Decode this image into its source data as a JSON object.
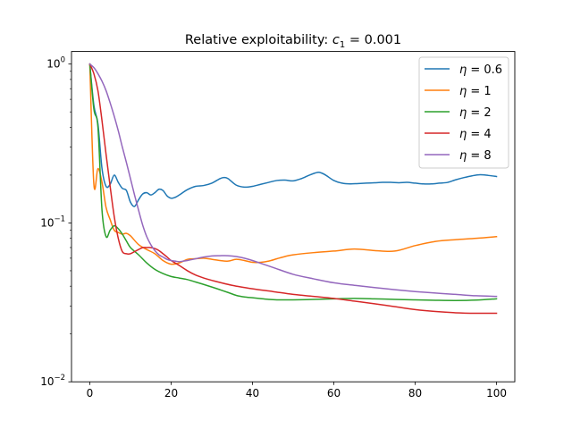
{
  "chart_data": {
    "type": "line",
    "title_prefix": "Relative exploitability: ",
    "title_math": "c",
    "title_sub": "1",
    "title_suffix": " = 0.001",
    "xlabel": "",
    "ylabel": "",
    "xscale": "linear",
    "yscale": "log",
    "xlim": [
      -4.5,
      104.5
    ],
    "ylim": [
      0.01,
      1.2
    ],
    "x_ticks": [
      0,
      20,
      40,
      60,
      80,
      100
    ],
    "x_tick_labels": [
      "0",
      "20",
      "40",
      "60",
      "80",
      "100"
    ],
    "y_ticks": [
      0.01,
      0.1,
      1
    ],
    "y_tick_base": "10",
    "y_tick_exponents": [
      "−2",
      "−1",
      "0"
    ],
    "legend_position": "top-right",
    "series": [
      {
        "name_prefix": "η",
        "name_suffix": " = 0.6",
        "color": "#1f77b4",
        "x": [
          0,
          1,
          2,
          3,
          4,
          5,
          6,
          7,
          8,
          9,
          10,
          11,
          12,
          13,
          14,
          15,
          16,
          17,
          18,
          19,
          20,
          21,
          22,
          24,
          26,
          28,
          30,
          32,
          33,
          34,
          36,
          38,
          40,
          42,
          44,
          46,
          48,
          50,
          52,
          54,
          56,
          57,
          58,
          60,
          62,
          64,
          66,
          68,
          70,
          72,
          74,
          76,
          78,
          80,
          82,
          84,
          86,
          88,
          90,
          92,
          94,
          96,
          98,
          100
        ],
        "y": [
          1.0,
          0.55,
          0.42,
          0.22,
          0.17,
          0.175,
          0.2,
          0.18,
          0.165,
          0.16,
          0.135,
          0.127,
          0.14,
          0.152,
          0.155,
          0.15,
          0.155,
          0.163,
          0.16,
          0.148,
          0.143,
          0.145,
          0.15,
          0.162,
          0.17,
          0.172,
          0.178,
          0.19,
          0.193,
          0.19,
          0.173,
          0.168,
          0.17,
          0.175,
          0.18,
          0.185,
          0.186,
          0.184,
          0.19,
          0.2,
          0.208,
          0.206,
          0.2,
          0.185,
          0.178,
          0.176,
          0.177,
          0.178,
          0.179,
          0.18,
          0.18,
          0.179,
          0.18,
          0.178,
          0.176,
          0.176,
          0.178,
          0.18,
          0.187,
          0.193,
          0.198,
          0.201,
          0.199,
          0.196
        ]
      },
      {
        "name_prefix": "η",
        "name_suffix": " = 1",
        "color": "#ff7f0e",
        "x": [
          0,
          1,
          2,
          3,
          4,
          5,
          6,
          7,
          8,
          9,
          10,
          12,
          14,
          16,
          18,
          20,
          22,
          24,
          26,
          28,
          30,
          32,
          34,
          36,
          38,
          40,
          42,
          44,
          46,
          48,
          50,
          55,
          60,
          65,
          70,
          75,
          80,
          85,
          90,
          95,
          100
        ],
        "y": [
          1.0,
          0.175,
          0.22,
          0.18,
          0.125,
          0.105,
          0.09,
          0.087,
          0.085,
          0.086,
          0.083,
          0.073,
          0.068,
          0.064,
          0.058,
          0.055,
          0.056,
          0.059,
          0.0595,
          0.06,
          0.059,
          0.058,
          0.0575,
          0.059,
          0.058,
          0.0565,
          0.0565,
          0.0575,
          0.0595,
          0.0615,
          0.063,
          0.065,
          0.0665,
          0.0685,
          0.067,
          0.0665,
          0.072,
          0.0765,
          0.0785,
          0.08,
          0.082
        ]
      },
      {
        "name_prefix": "η",
        "name_suffix": " = 2",
        "color": "#2ca02c",
        "x": [
          0,
          1,
          2,
          3,
          4,
          5,
          6,
          7,
          8,
          9,
          10,
          12,
          14,
          16,
          18,
          20,
          22,
          24,
          26,
          28,
          30,
          32,
          34,
          36,
          38,
          40,
          42,
          44,
          46,
          48,
          50,
          55,
          60,
          65,
          70,
          75,
          80,
          85,
          90,
          95,
          100
        ],
        "y": [
          1.0,
          0.52,
          0.4,
          0.12,
          0.082,
          0.09,
          0.096,
          0.092,
          0.085,
          0.077,
          0.07,
          0.063,
          0.056,
          0.051,
          0.048,
          0.046,
          0.045,
          0.044,
          0.0425,
          0.041,
          0.0395,
          0.038,
          0.0365,
          0.035,
          0.0342,
          0.0338,
          0.0334,
          0.033,
          0.0328,
          0.0328,
          0.0328,
          0.033,
          0.0333,
          0.0335,
          0.0333,
          0.033,
          0.0328,
          0.0326,
          0.0325,
          0.0327,
          0.0333
        ]
      },
      {
        "name_prefix": "η",
        "name_suffix": " = 4",
        "color": "#d62728",
        "x": [
          0,
          1,
          2,
          3,
          4,
          5,
          6,
          7,
          8,
          9,
          10,
          11,
          12,
          13,
          14,
          15,
          16,
          17,
          18,
          19,
          20,
          22,
          24,
          26,
          28,
          30,
          35,
          40,
          45,
          50,
          55,
          60,
          65,
          70,
          75,
          80,
          85,
          90,
          95,
          100
        ],
        "y": [
          1.0,
          0.87,
          0.68,
          0.44,
          0.27,
          0.17,
          0.11,
          0.08,
          0.066,
          0.064,
          0.064,
          0.066,
          0.068,
          0.07,
          0.07,
          0.07,
          0.069,
          0.067,
          0.064,
          0.061,
          0.058,
          0.054,
          0.05,
          0.047,
          0.045,
          0.0435,
          0.0405,
          0.0385,
          0.037,
          0.0355,
          0.0345,
          0.0335,
          0.0322,
          0.031,
          0.0297,
          0.0285,
          0.0277,
          0.0272,
          0.027,
          0.027
        ]
      },
      {
        "name_prefix": "η",
        "name_suffix": " = 8",
        "color": "#9467bd",
        "x": [
          0,
          1,
          2,
          3,
          4,
          5,
          6,
          7,
          8,
          9,
          10,
          11,
          12,
          13,
          14,
          15,
          16,
          17,
          18,
          19,
          20,
          21,
          22,
          23,
          24,
          26,
          28,
          30,
          32,
          34,
          36,
          38,
          40,
          45,
          50,
          55,
          60,
          65,
          70,
          75,
          80,
          85,
          90,
          95,
          100
        ],
        "y": [
          1.0,
          0.95,
          0.87,
          0.78,
          0.68,
          0.57,
          0.47,
          0.38,
          0.3,
          0.24,
          0.19,
          0.15,
          0.12,
          0.097,
          0.082,
          0.073,
          0.067,
          0.063,
          0.061,
          0.059,
          0.058,
          0.0575,
          0.057,
          0.0575,
          0.058,
          0.0595,
          0.061,
          0.062,
          0.0622,
          0.0622,
          0.0615,
          0.06,
          0.058,
          0.0525,
          0.0475,
          0.0445,
          0.042,
          0.0405,
          0.0392,
          0.038,
          0.037,
          0.0362,
          0.0355,
          0.0348,
          0.0345
        ]
      }
    ]
  }
}
